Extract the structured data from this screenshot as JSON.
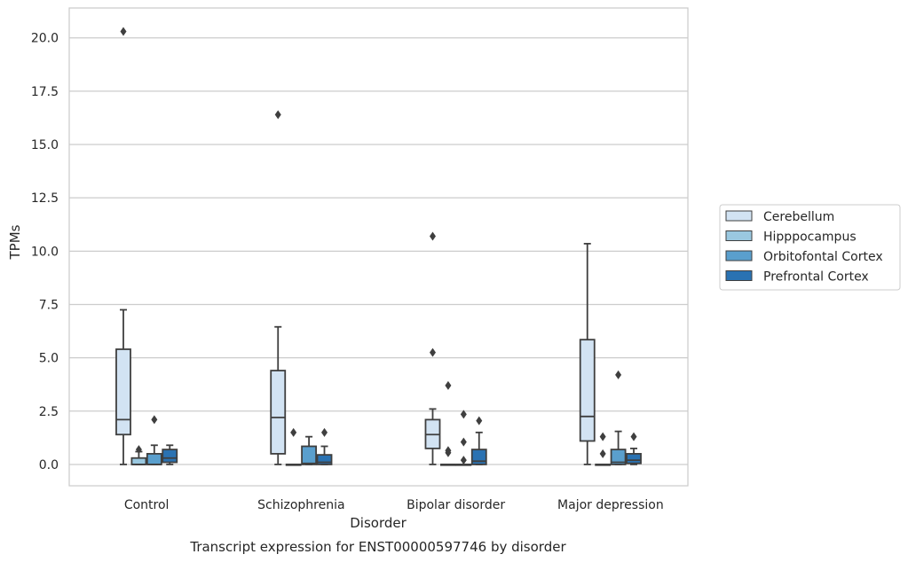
{
  "chart_data": {
    "type": "box",
    "title": "Transcript expression for ENST00000597746 by disorder",
    "xlabel": "Disorder",
    "ylabel": "TPMs",
    "ylim": [
      -1.0,
      21.4
    ],
    "yticks": [
      "0.0",
      "2.5",
      "5.0",
      "7.5",
      "10.0",
      "12.5",
      "15.0",
      "17.5",
      "20.0"
    ],
    "ytick_values": [
      0,
      2.5,
      5,
      7.5,
      10,
      12.5,
      15,
      17.5,
      20
    ],
    "grid": "horizontal",
    "legend_position": "right",
    "categories": [
      "Control",
      "Schizophrenia",
      "Bipolar disorder",
      "Major depression"
    ],
    "series": [
      {
        "name": "Cerebellum",
        "color": "#d2e3f3",
        "boxes": [
          {
            "whislo": 0.0,
            "q1": 1.4,
            "med": 2.1,
            "q3": 5.4,
            "whishi": 7.25,
            "fliers": [
              20.3
            ]
          },
          {
            "whislo": 0.0,
            "q1": 0.5,
            "med": 2.2,
            "q3": 4.4,
            "whishi": 6.45,
            "fliers": [
              16.4
            ]
          },
          {
            "whislo": 0.0,
            "q1": 0.75,
            "med": 1.4,
            "q3": 2.1,
            "whishi": 2.6,
            "fliers": [
              5.25,
              10.7
            ]
          },
          {
            "whislo": 0.0,
            "q1": 1.1,
            "med": 2.25,
            "q3": 5.85,
            "whishi": 10.35,
            "fliers": []
          }
        ]
      },
      {
        "name": "Hipppocampus",
        "color": "#9ac8e0",
        "boxes": [
          {
            "whislo": 0.0,
            "q1": 0.0,
            "med": 0.0,
            "q3": 0.3,
            "whishi": 0.6,
            "fliers": [
              0.7
            ]
          },
          {
            "whislo": 0.0,
            "q1": 0.0,
            "med": 0.0,
            "q3": 0.0,
            "whishi": 0.0,
            "fliers": [
              1.5
            ]
          },
          {
            "whislo": 0.0,
            "q1": 0.0,
            "med": 0.0,
            "q3": 0.0,
            "whishi": 0.0,
            "fliers": [
              0.55,
              0.65,
              3.7
            ]
          },
          {
            "whislo": 0.0,
            "q1": 0.0,
            "med": 0.0,
            "q3": 0.0,
            "whishi": 0.0,
            "fliers": [
              0.5,
              1.3
            ]
          }
        ]
      },
      {
        "name": "Orbitofontal Cortex",
        "color": "#5a9fcd",
        "boxes": [
          {
            "whislo": 0.0,
            "q1": 0.0,
            "med": 0.0,
            "q3": 0.5,
            "whishi": 0.9,
            "fliers": [
              2.1
            ]
          },
          {
            "whislo": 0.0,
            "q1": 0.0,
            "med": 0.05,
            "q3": 0.85,
            "whishi": 1.3,
            "fliers": []
          },
          {
            "whislo": 0.0,
            "q1": 0.0,
            "med": 0.0,
            "q3": 0.0,
            "whishi": 0.0,
            "fliers": [
              0.2,
              1.05,
              2.35
            ]
          },
          {
            "whislo": 0.0,
            "q1": 0.0,
            "med": 0.1,
            "q3": 0.7,
            "whishi": 1.55,
            "fliers": [
              4.2
            ]
          }
        ]
      },
      {
        "name": "Prefrontal Cortex",
        "color": "#2a72b2",
        "boxes": [
          {
            "whislo": 0.0,
            "q1": 0.1,
            "med": 0.3,
            "q3": 0.7,
            "whishi": 0.9,
            "fliers": []
          },
          {
            "whislo": 0.0,
            "q1": 0.0,
            "med": 0.1,
            "q3": 0.45,
            "whishi": 0.85,
            "fliers": [
              1.5
            ]
          },
          {
            "whislo": 0.0,
            "q1": 0.0,
            "med": 0.15,
            "q3": 0.7,
            "whishi": 1.5,
            "fliers": [
              2.05
            ]
          },
          {
            "whislo": 0.0,
            "q1": 0.05,
            "med": 0.2,
            "q3": 0.5,
            "whishi": 0.75,
            "fliers": [
              1.3
            ]
          }
        ]
      }
    ]
  }
}
